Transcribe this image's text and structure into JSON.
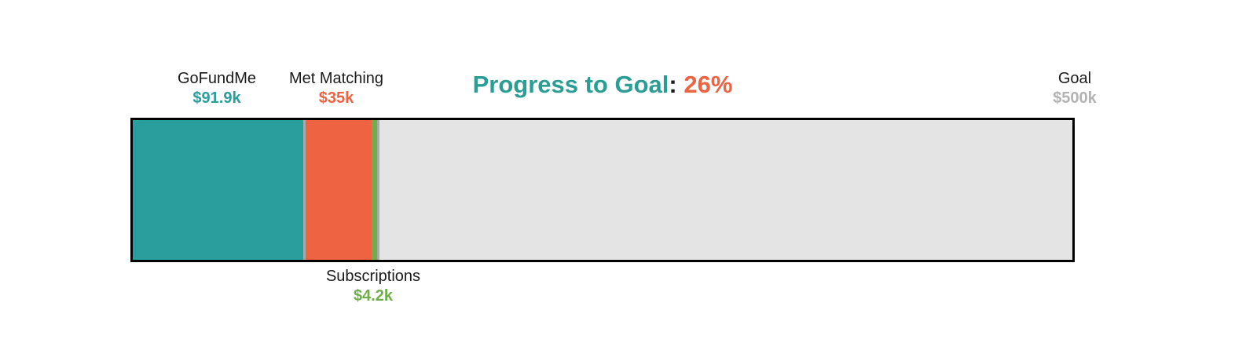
{
  "chart_data": {
    "type": "bar",
    "layout_hint": "horizontal stacked progress bar, labels above and below segments, goal label at right end, title centered over bar",
    "title": "Progress to Goal",
    "separator": ":",
    "progress_pct": "26%",
    "goal_amount_k": 500,
    "goal": {
      "label": "Goal",
      "value": "$500k"
    },
    "segments": [
      {
        "name": "GoFundMe",
        "value": "$91.9k",
        "amount_k": 91.9,
        "color": "#2A9E9C",
        "label_position": "above",
        "divider_after": true
      },
      {
        "name": "Met Matching",
        "value": "$35k",
        "amount_k": 35,
        "color": "#EE6342",
        "label_position": "above",
        "divider_after": false
      },
      {
        "name": "Subscriptions",
        "value": "$4.2k",
        "amount_k": 4.2,
        "color": "#6FAE4B",
        "label_position": "below",
        "divider_after": true
      }
    ],
    "colors": {
      "title": "#2A9D94",
      "percent": "#EE6342",
      "label_text": "#1A1A1A",
      "goal_value": "#B3B3B3",
      "remainder": "#E4E4E4",
      "divider": "#A9A9A9",
      "bar_border": "#000000",
      "background": "#FFFFFF"
    }
  }
}
